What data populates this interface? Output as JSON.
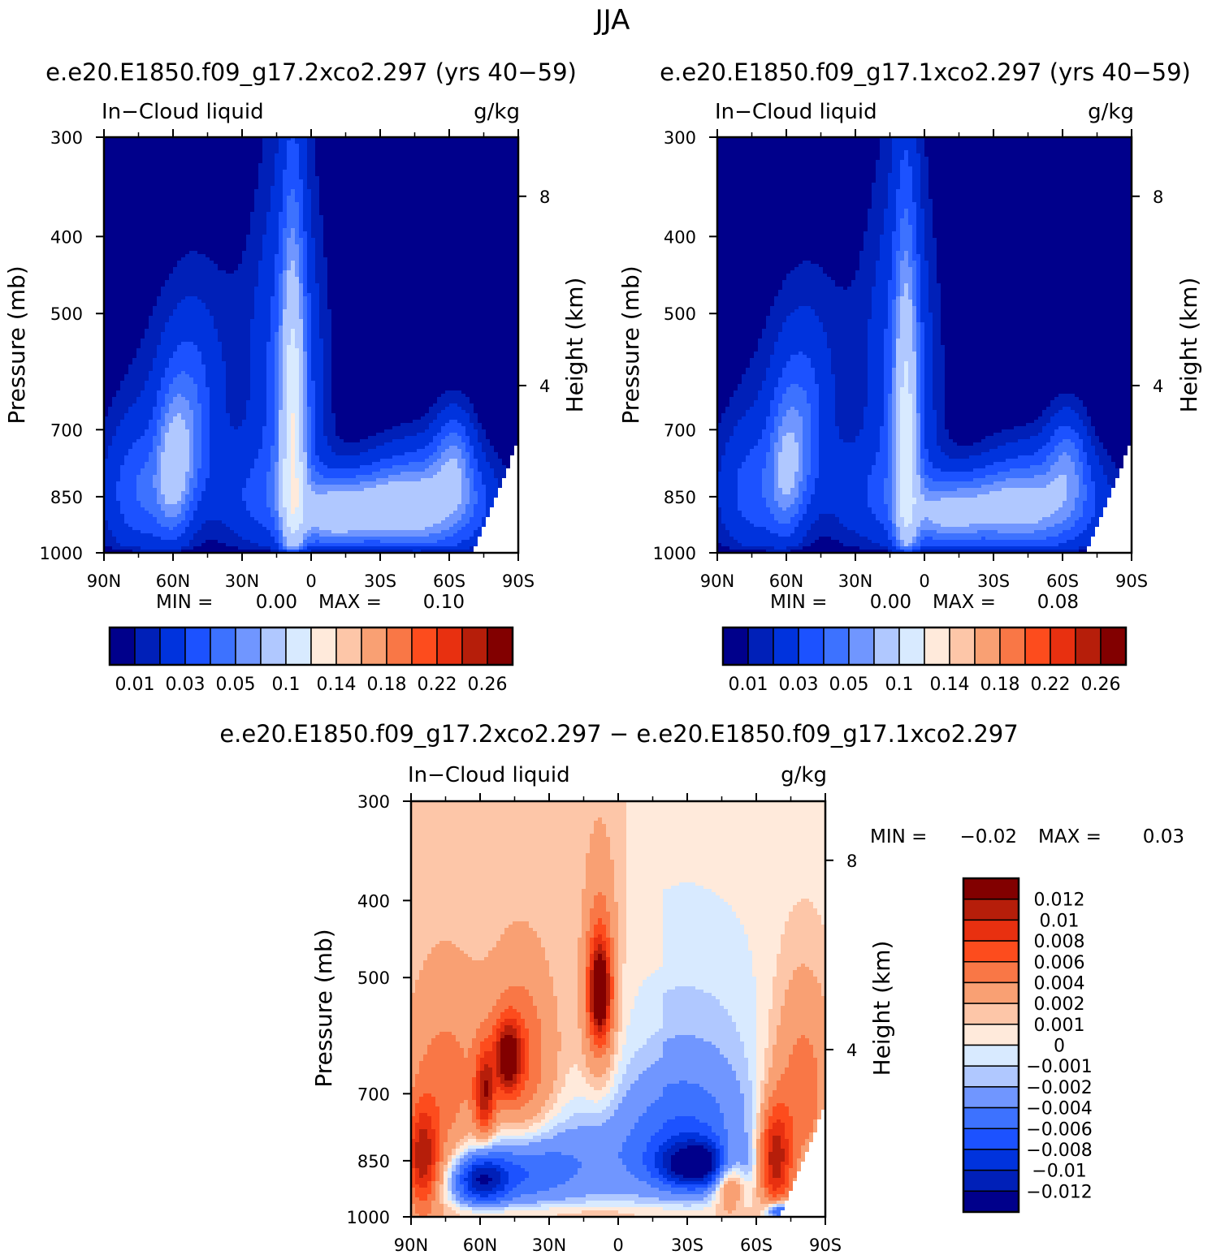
{
  "figure": {
    "title": "JJA",
    "diff_title": "e.e20.E1850.f09_g17.2xco2.297 − e.e20.E1850.f09_g17.1xco2.297"
  },
  "chart_data": [
    {
      "type": "heatmap",
      "case_title": "e.e20.E1850.f09_g17.2xco2.297 (yrs 40−59)",
      "variable": "In−Cloud liquid",
      "units": "g/kg",
      "ylabel": "Pressure (mb)",
      "ylabel_right": "Height (km)",
      "x_ticks": [
        "90N",
        "60N",
        "30N",
        "0",
        "30S",
        "60S",
        "90S"
      ],
      "y_ticks": [
        "300",
        "400",
        "500",
        "700",
        "850",
        "1000"
      ],
      "y_ticks_right": [
        "8",
        "4"
      ],
      "stats": {
        "min_label": "MIN =",
        "min": "0.00",
        "max_label": "MAX =",
        "max": "0.10"
      },
      "colorbar": {
        "colors": [
          "#00008b",
          "#0020b8",
          "#0033dd",
          "#1c52ff",
          "#3d72ff",
          "#7096ff",
          "#b0c8ff",
          "#d8eaff",
          "#ffeadb",
          "#fdc6a8",
          "#f9a073",
          "#f97746",
          "#fd4c1d",
          "#e83010",
          "#b61e0a",
          "#820000"
        ],
        "labels": [
          "0.01",
          "0.03",
          "0.05",
          "0.1",
          "0.14",
          "0.18",
          "0.22",
          "0.26"
        ]
      }
    },
    {
      "type": "heatmap",
      "case_title": "e.e20.E1850.f09_g17.1xco2.297 (yrs 40−59)",
      "variable": "In−Cloud liquid",
      "units": "g/kg",
      "ylabel": "Pressure (mb)",
      "ylabel_right": "Height (km)",
      "x_ticks": [
        "90N",
        "60N",
        "30N",
        "0",
        "30S",
        "60S",
        "90S"
      ],
      "y_ticks": [
        "300",
        "400",
        "500",
        "700",
        "850",
        "1000"
      ],
      "y_ticks_right": [
        "8",
        "4"
      ],
      "stats": {
        "min_label": "MIN =",
        "min": "0.00",
        "max_label": "MAX =",
        "max": "0.08"
      },
      "colorbar": {
        "colors": [
          "#00008b",
          "#0020b8",
          "#0033dd",
          "#1c52ff",
          "#3d72ff",
          "#7096ff",
          "#b0c8ff",
          "#d8eaff",
          "#ffeadb",
          "#fdc6a8",
          "#f9a073",
          "#f97746",
          "#fd4c1d",
          "#e83010",
          "#b61e0a",
          "#820000"
        ],
        "labels": [
          "0.01",
          "0.03",
          "0.05",
          "0.1",
          "0.14",
          "0.18",
          "0.22",
          "0.26"
        ]
      }
    },
    {
      "type": "heatmap",
      "variable": "In−Cloud liquid",
      "units": "g/kg",
      "ylabel": "Pressure (mb)",
      "ylabel_right": "Height (km)",
      "x_ticks": [
        "90N",
        "60N",
        "30N",
        "0",
        "30S",
        "60S",
        "90S"
      ],
      "y_ticks": [
        "300",
        "400",
        "500",
        "700",
        "850",
        "1000"
      ],
      "y_ticks_right": [
        "8",
        "4"
      ],
      "stats": {
        "min_label": "MIN =",
        "min": "−0.02",
        "max_label": "MAX =",
        "max": "0.03"
      },
      "colorbar": {
        "colors": [
          "#820000",
          "#b61e0a",
          "#e83010",
          "#fd4c1d",
          "#f97746",
          "#f9a073",
          "#fdc6a8",
          "#ffeadb",
          "#d8eaff",
          "#b0c8ff",
          "#7096ff",
          "#3d72ff",
          "#1c52ff",
          "#0033dd",
          "#0020b8",
          "#00008b"
        ],
        "labels": [
          "0.012",
          "0.01",
          "0.008",
          "0.006",
          "0.004",
          "0.002",
          "0.001",
          "0",
          "−0.001",
          "−0.002",
          "−0.004",
          "−0.006",
          "−0.008",
          "−0.01",
          "−0.012"
        ]
      }
    }
  ]
}
